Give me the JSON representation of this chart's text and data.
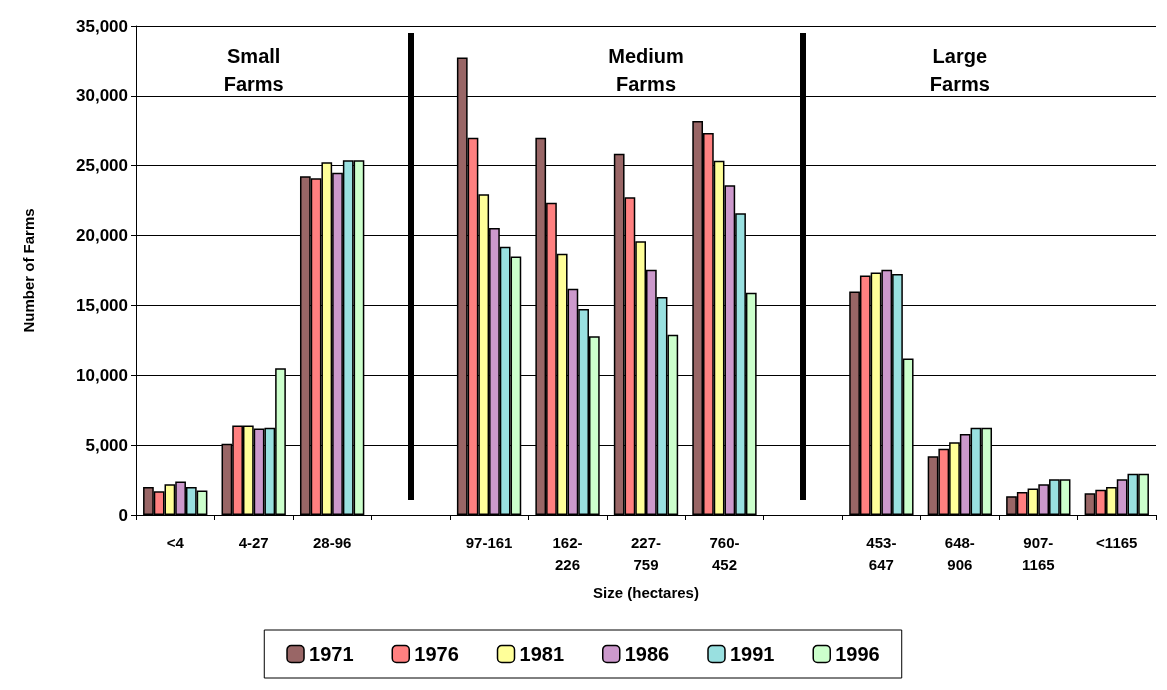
{
  "chart_data": {
    "type": "bar",
    "xlabel": "Size (hectares)",
    "ylabel": "Number of Farms",
    "categories": [
      "<4",
      "4-27",
      "28-96",
      null,
      "97-161",
      "162-226",
      "227-759",
      "760-452",
      null,
      "453-647",
      "648-906",
      "907-1165",
      "<1165"
    ],
    "series": [
      {
        "name": "1971",
        "color": "#996666",
        "values": [
          2000,
          5100,
          24250,
          null,
          32750,
          27000,
          25850,
          28200,
          null,
          16000,
          4200,
          1350,
          1550
        ]
      },
      {
        "name": "1976",
        "color": "#ff8080",
        "values": [
          1700,
          6400,
          24100,
          null,
          27000,
          22350,
          22750,
          27350,
          null,
          17150,
          4750,
          1650,
          1800
        ]
      },
      {
        "name": "1981",
        "color": "#ffff99",
        "values": [
          2200,
          6400,
          25250,
          null,
          22950,
          18700,
          19600,
          25350,
          null,
          17350,
          5200,
          1900,
          2000
        ]
      },
      {
        "name": "1986",
        "color": "#cc99cc",
        "values": [
          2400,
          6200,
          24500,
          null,
          20550,
          16200,
          17550,
          23600,
          null,
          17550,
          5800,
          2200,
          2550
        ]
      },
      {
        "name": "1991",
        "color": "#99e0e0",
        "values": [
          2000,
          6250,
          25400,
          null,
          19200,
          14750,
          15600,
          21600,
          null,
          17250,
          6250,
          2550,
          2950
        ]
      },
      {
        "name": "1996",
        "color": "#ccffcc",
        "values": [
          1750,
          10500,
          25400,
          null,
          18500,
          12800,
          12900,
          15900,
          null,
          11200,
          6250,
          2550,
          2950
        ]
      }
    ],
    "ylim": [
      0,
      35000
    ],
    "yticks": [
      0,
      {
        "value": 5000,
        "label": "5,000"
      },
      {
        "value": 10000,
        "label": "10,000"
      },
      {
        "value": 15000,
        "label": "15,000"
      },
      {
        "value": 20000,
        "label": "20,000"
      },
      {
        "value": 25000,
        "label": "25,000"
      },
      {
        "value": 30000,
        "label": "30,000"
      },
      {
        "value": 35000,
        "label": "35,000"
      }
    ],
    "grid": "y",
    "legend": "bottom",
    "annotations": [
      "Small Farms",
      "Medium Farms",
      "Large Farms"
    ]
  }
}
